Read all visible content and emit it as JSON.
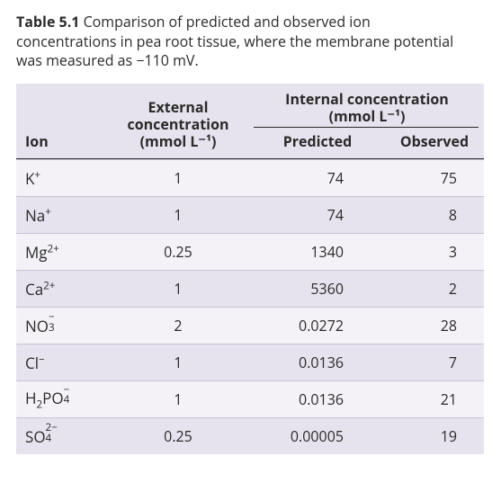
{
  "caption": {
    "label": "Table 5.1",
    "text_before": "  Comparison of predicted and observed ion concentrations in pea root tissue, where the membrane potential was measured as ",
    "mv_value": "−110 mV.",
    "text_after": ""
  },
  "colors": {
    "odd_row": "#f4f2f7",
    "even_row": "#e7e3ee",
    "rule": "#2a2a2a",
    "row_sep": "#c7c2d3",
    "text": "#2a2a2a"
  },
  "headers": {
    "ion": "Ion",
    "external_l1": "External",
    "external_l2": "concentration",
    "external_l3": "(mmol L⁻¹)",
    "internal_l1": "Internal concentration",
    "internal_l2": "(mmol L⁻¹)",
    "predicted": "Predicted",
    "observed": "Observed"
  },
  "rows": [
    {
      "ion_html": "K<span class='sup'>+</span>",
      "ext": "1",
      "pred": "74",
      "obs": "75"
    },
    {
      "ion_html": "Na<span class='sup'>+</span>",
      "ext": "1",
      "pred": "74",
      "obs": "8"
    },
    {
      "ion_html": "Mg<span class='sup'>2+</span>",
      "ext": "0.25",
      "pred": "1340",
      "obs": "3"
    },
    {
      "ion_html": "Ca<span class='sup'>2+</span>",
      "ext": "1",
      "pred": "5360",
      "obs": "2"
    },
    {
      "ion_html": "NO<span class='stack'><span class='s-sup'>−</span><span class='s-sub'>3</span></span>",
      "ext": "2",
      "pred": "0.0272",
      "obs": "28"
    },
    {
      "ion_html": "Cl<span class='sup'>−</span>",
      "ext": "1",
      "pred": "0.0136",
      "obs": "7"
    },
    {
      "ion_html": "H<span class='sub'>2</span>PO<span class='stack'><span class='s-sup'>−</span><span class='s-sub'>4</span></span>",
      "ext": "1",
      "pred": "0.0136",
      "obs": "21"
    },
    {
      "ion_html": "SO<span class='stack'><span class='s-sup'>2−</span><span class='s-sub'>4</span></span>",
      "ext": "0.25",
      "pred": "0.00005",
      "obs": "19"
    }
  ]
}
